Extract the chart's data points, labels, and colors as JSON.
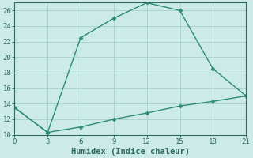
{
  "xlabel": "Humidex (Indice chaleur)",
  "line1_x": [
    0,
    3,
    6,
    9,
    12,
    15,
    18,
    21
  ],
  "line1_y": [
    13.5,
    10.3,
    22.5,
    25.0,
    27.0,
    26.0,
    18.5,
    15.0
  ],
  "line2_x": [
    0,
    3,
    6,
    9,
    12,
    15,
    18,
    21
  ],
  "line2_y": [
    13.5,
    10.3,
    11.0,
    12.0,
    12.8,
    13.7,
    14.3,
    15.0
  ],
  "line_color": "#2d8b74",
  "bg_color": "#cceae7",
  "grid_color": "#aad4cf",
  "marker": "D",
  "marker_size": 2.5,
  "linewidth": 1.0,
  "xlim": [
    0,
    21
  ],
  "ylim": [
    10,
    27
  ],
  "xticks": [
    0,
    3,
    6,
    9,
    12,
    15,
    18,
    21
  ],
  "yticks": [
    10,
    12,
    14,
    16,
    18,
    20,
    22,
    24,
    26
  ],
  "tick_fontsize": 6.5,
  "xlabel_fontsize": 7.5,
  "spine_color": "#2d6b5a"
}
